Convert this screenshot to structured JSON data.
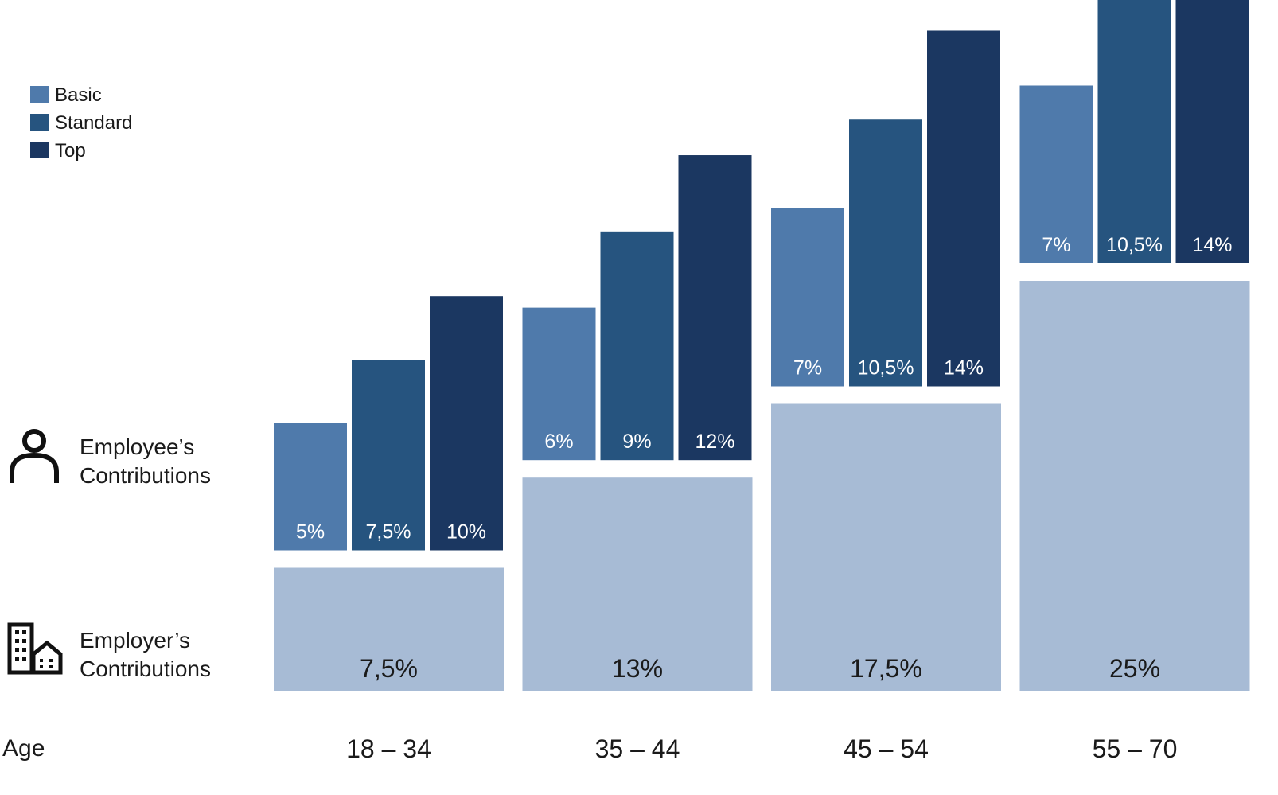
{
  "legend": [
    {
      "label": "Basic",
      "color": "#4f7aab"
    },
    {
      "label": "Standard",
      "color": "#26547f"
    },
    {
      "label": "Top",
      "color": "#1b3761"
    }
  ],
  "row_labels": {
    "employee": {
      "line1": "Employee’s",
      "line2": "Contributions",
      "icon": "person-icon"
    },
    "employer": {
      "line1": "Employer’s",
      "line2": "Contributions",
      "icon": "building-icon"
    }
  },
  "age_label": "Age",
  "colors": {
    "employer": "#a7bbd5",
    "label_light": "#ffffff",
    "label_dark": "#1a1a1a"
  },
  "chart_data": {
    "type": "bar",
    "categories": [
      "18 – 34",
      "35 – 44",
      "45 – 54",
      "55 – 70"
    ],
    "employer": {
      "values": [
        7.5,
        13,
        17.5,
        25
      ],
      "labels": [
        "7,5%",
        "13%",
        "17,5%",
        "25%"
      ]
    },
    "series": [
      {
        "name": "Basic",
        "values": [
          5,
          6,
          7,
          7
        ],
        "labels": [
          "5%",
          "6%",
          "7%",
          "7%"
        ]
      },
      {
        "name": "Standard",
        "values": [
          7.5,
          9,
          10.5,
          10.5
        ],
        "labels": [
          "7,5%",
          "9%",
          "10,5%",
          "10,5%"
        ]
      },
      {
        "name": "Top",
        "values": [
          10,
          12,
          14,
          14
        ],
        "labels": [
          "10%",
          "12%",
          "14%",
          "14%"
        ]
      }
    ],
    "stacked_employee_on_employer": true
  }
}
